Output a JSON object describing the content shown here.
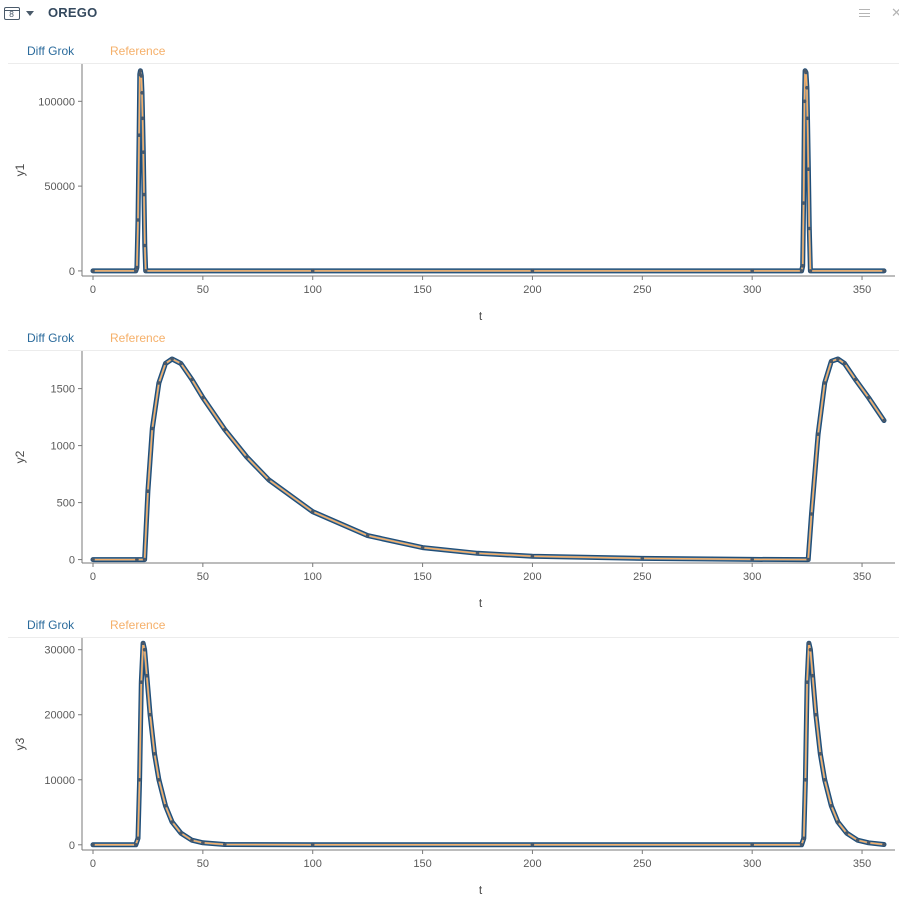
{
  "header": {
    "title": "OREGO",
    "icons": [
      "table-view-icon",
      "caret-down-icon",
      "hamburger-menu-icon",
      "close-icon"
    ],
    "view_icon_digit": "8"
  },
  "colors": {
    "diff_grok": "#1f4e79",
    "reference": "#f5b06a",
    "legend_diff_grok": "#2b6b9c"
  },
  "chart_data": [
    {
      "type": "line",
      "legend": [
        "Diff Grok",
        "Reference"
      ],
      "xlabel": "t",
      "ylabel": "y1",
      "xlim": [
        -5,
        365
      ],
      "ylim": [
        -3000,
        122000
      ],
      "xticks": [
        0,
        50,
        100,
        150,
        200,
        250,
        300,
        350
      ],
      "yticks": [
        0,
        50000,
        100000
      ],
      "series": [
        {
          "name": "Diff Grok",
          "x": [
            0,
            19.5,
            20,
            20.5,
            21,
            21.3,
            21.6,
            22,
            22.3,
            22.6,
            22.9,
            23.2,
            23.6,
            24,
            100,
            200,
            300,
            322.5,
            323,
            323.4,
            323.8,
            324.1,
            324.5,
            324.9,
            325.2,
            325.6,
            326,
            326.5,
            360
          ],
          "y": [
            0,
            0,
            2000,
            30000,
            80000,
            116000,
            118000,
            115000,
            105000,
            90000,
            70000,
            45000,
            15000,
            0,
            0,
            0,
            0,
            0,
            3000,
            40000,
            100000,
            118000,
            117000,
            108000,
            90000,
            60000,
            25000,
            0,
            0
          ]
        },
        {
          "name": "Reference",
          "x": [
            0,
            19.5,
            20,
            20.5,
            21,
            21.3,
            21.6,
            22,
            22.3,
            22.6,
            22.9,
            23.2,
            23.6,
            24,
            100,
            200,
            300,
            322.5,
            323,
            323.4,
            323.8,
            324.1,
            324.5,
            324.9,
            325.2,
            325.6,
            326,
            326.5,
            360
          ],
          "y": [
            0,
            0,
            2000,
            30000,
            80000,
            116000,
            118000,
            115000,
            105000,
            90000,
            70000,
            45000,
            15000,
            0,
            0,
            0,
            0,
            0,
            3000,
            40000,
            100000,
            118000,
            117000,
            108000,
            90000,
            60000,
            25000,
            0,
            0
          ]
        }
      ]
    },
    {
      "type": "line",
      "legend": [
        "Diff Grok",
        "Reference"
      ],
      "xlabel": "t",
      "ylabel": "y2",
      "xlim": [
        -5,
        365
      ],
      "ylim": [
        -30,
        1830
      ],
      "xticks": [
        0,
        50,
        100,
        150,
        200,
        250,
        300,
        350
      ],
      "yticks": [
        0,
        500,
        1000,
        1500
      ],
      "series": [
        {
          "name": "Diff Grok",
          "x": [
            0,
            20,
            23.5,
            25,
            27,
            30,
            33,
            36,
            40,
            45,
            50,
            60,
            70,
            80,
            100,
            125,
            150,
            175,
            200,
            250,
            300,
            325.5,
            327,
            330,
            333,
            336,
            339,
            342,
            347,
            353,
            360
          ],
          "y": [
            0,
            0,
            0,
            600,
            1150,
            1550,
            1720,
            1760,
            1720,
            1580,
            1420,
            1140,
            900,
            700,
            420,
            210,
            105,
            55,
            30,
            10,
            2,
            0,
            400,
            1100,
            1550,
            1740,
            1760,
            1720,
            1580,
            1420,
            1220
          ]
        },
        {
          "name": "Reference",
          "x": [
            0,
            20,
            23.5,
            25,
            27,
            30,
            33,
            36,
            40,
            45,
            50,
            60,
            70,
            80,
            100,
            125,
            150,
            175,
            200,
            250,
            300,
            325.5,
            327,
            330,
            333,
            336,
            339,
            342,
            347,
            353,
            360
          ],
          "y": [
            0,
            0,
            0,
            600,
            1150,
            1550,
            1720,
            1760,
            1720,
            1580,
            1420,
            1140,
            900,
            700,
            420,
            210,
            105,
            55,
            30,
            10,
            2,
            0,
            400,
            1100,
            1550,
            1740,
            1760,
            1720,
            1580,
            1420,
            1220
          ]
        }
      ]
    },
    {
      "type": "line",
      "legend": [
        "Diff Grok",
        "Reference"
      ],
      "xlabel": "t",
      "ylabel": "y3",
      "xlim": [
        -5,
        365
      ],
      "ylim": [
        -800,
        31800
      ],
      "xticks": [
        0,
        50,
        100,
        150,
        200,
        250,
        300,
        350
      ],
      "yticks": [
        0,
        10000,
        20000,
        30000
      ],
      "series": [
        {
          "name": "Diff Grok",
          "x": [
            0,
            19.5,
            20.5,
            21.2,
            22,
            22.8,
            23.5,
            24.5,
            26,
            28,
            30,
            33,
            36,
            40,
            45,
            50,
            60,
            100,
            200,
            300,
            322.5,
            323.5,
            324.2,
            325,
            325.8,
            326.5,
            327.5,
            329,
            331,
            333,
            336,
            339,
            343,
            348,
            353,
            360
          ],
          "y": [
            0,
            0,
            1000,
            10000,
            25000,
            31000,
            30000,
            26000,
            20000,
            14000,
            10000,
            6000,
            3500,
            1800,
            700,
            300,
            50,
            0,
            0,
            0,
            0,
            1000,
            10000,
            25000,
            31000,
            30000,
            26000,
            20000,
            14000,
            10000,
            6000,
            3500,
            1800,
            700,
            300,
            50
          ]
        },
        {
          "name": "Reference",
          "x": [
            0,
            19.5,
            20.5,
            21.2,
            22,
            22.8,
            23.5,
            24.5,
            26,
            28,
            30,
            33,
            36,
            40,
            45,
            50,
            60,
            100,
            200,
            300,
            322.5,
            323.5,
            324.2,
            325,
            325.8,
            326.5,
            327.5,
            329,
            331,
            333,
            336,
            339,
            343,
            348,
            353,
            360
          ],
          "y": [
            0,
            0,
            1000,
            10000,
            25000,
            31000,
            30000,
            26000,
            20000,
            14000,
            10000,
            6000,
            3500,
            1800,
            700,
            300,
            50,
            0,
            0,
            0,
            0,
            1000,
            10000,
            25000,
            31000,
            30000,
            26000,
            20000,
            14000,
            10000,
            6000,
            3500,
            1800,
            700,
            300,
            50
          ]
        }
      ]
    }
  ]
}
